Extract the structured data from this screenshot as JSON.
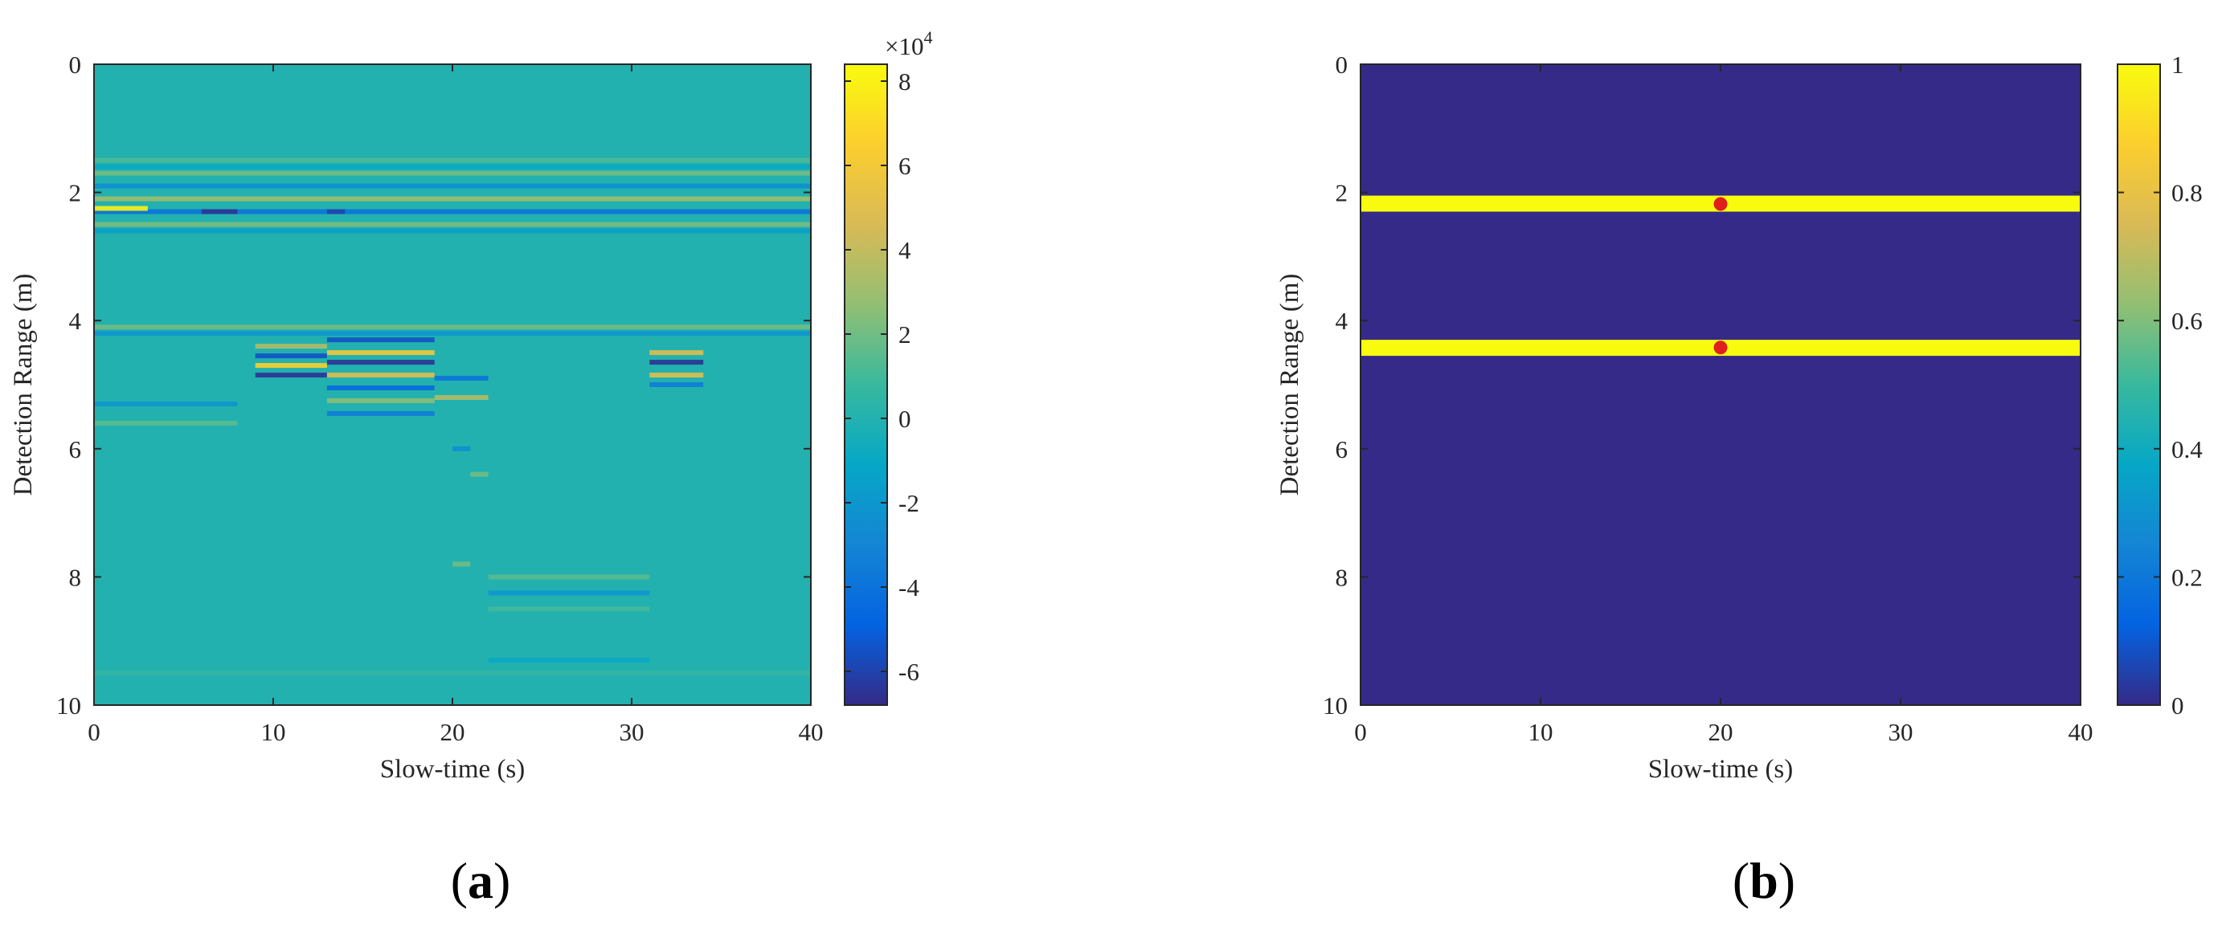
{
  "colors": {
    "parula": [
      "#352a87",
      "#0363e1",
      "#1485d4",
      "#06a7c6",
      "#38b99e",
      "#92bf73",
      "#d9ba56",
      "#fcce2e",
      "#f9fb0e"
    ],
    "detection_marker": "#e0201b",
    "axis": "#262626"
  },
  "chart_data": [
    {
      "type": "heatmap",
      "panel_label": "a",
      "xlabel": "Slow-time (s)",
      "ylabel": "Detection Range (m)",
      "xlim": [
        0,
        40
      ],
      "ylim": [
        0,
        10
      ],
      "y_reversed": true,
      "xticks": [
        "0",
        "10",
        "20",
        "30",
        "40"
      ],
      "yticks": [
        "0",
        "2",
        "4",
        "6",
        "8",
        "10"
      ],
      "colorbar": {
        "limits": [
          -6.8,
          8.4
        ],
        "ticks": [
          "-6",
          "-4",
          "-2",
          "0",
          "2",
          "4",
          "6",
          "8"
        ],
        "exponent": "4"
      },
      "background_value": 0,
      "features": [
        {
          "t": [
            0,
            40
          ],
          "range": 1.5,
          "value": 1.2
        },
        {
          "t": [
            0,
            40
          ],
          "range": 1.6,
          "value": -1.0
        },
        {
          "t": [
            0,
            40
          ],
          "range": 1.7,
          "value": 2.0
        },
        {
          "t": [
            0,
            40
          ],
          "range": 1.9,
          "value": -2.5
        },
        {
          "t": [
            0,
            40
          ],
          "range": 2.1,
          "value": 3.0
        },
        {
          "t": [
            0,
            40
          ],
          "range": 2.3,
          "value": -4.0
        },
        {
          "t": [
            0,
            3
          ],
          "range": 2.25,
          "value": 8.0
        },
        {
          "t": [
            6,
            8
          ],
          "range": 2.3,
          "value": -6.5
        },
        {
          "t": [
            13,
            14
          ],
          "range": 2.3,
          "value": -6.0
        },
        {
          "t": [
            0,
            40
          ],
          "range": 2.5,
          "value": 2.2
        },
        {
          "t": [
            0,
            40
          ],
          "range": 2.6,
          "value": -1.5
        },
        {
          "t": [
            0,
            40
          ],
          "range": 4.1,
          "value": 2.0
        },
        {
          "t": [
            0,
            40
          ],
          "range": 4.2,
          "value": -2.0
        },
        {
          "t": [
            9,
            13
          ],
          "range": 4.4,
          "value": 3.5
        },
        {
          "t": [
            9,
            13
          ],
          "range": 4.55,
          "value": -5.5
        },
        {
          "t": [
            9,
            13
          ],
          "range": 4.7,
          "value": 6.5
        },
        {
          "t": [
            9,
            13
          ],
          "range": 4.85,
          "value": -6.5
        },
        {
          "t": [
            13,
            19
          ],
          "range": 4.3,
          "value": -5.5
        },
        {
          "t": [
            13,
            19
          ],
          "range": 4.5,
          "value": 6.0
        },
        {
          "t": [
            13,
            19
          ],
          "range": 4.65,
          "value": -6.5
        },
        {
          "t": [
            13,
            19
          ],
          "range": 4.85,
          "value": 5.0
        },
        {
          "t": [
            13,
            19
          ],
          "range": 5.05,
          "value": -4.5
        },
        {
          "t": [
            13,
            19
          ],
          "range": 5.25,
          "value": 2.5
        },
        {
          "t": [
            13,
            19
          ],
          "range": 5.45,
          "value": -3.5
        },
        {
          "t": [
            19,
            22
          ],
          "range": 4.9,
          "value": -4.0
        },
        {
          "t": [
            19,
            22
          ],
          "range": 5.2,
          "value": 3.5
        },
        {
          "t": [
            31,
            34
          ],
          "range": 4.5,
          "value": 5.0
        },
        {
          "t": [
            31,
            34
          ],
          "range": 4.65,
          "value": -6.5
        },
        {
          "t": [
            31,
            34
          ],
          "range": 4.85,
          "value": 5.0
        },
        {
          "t": [
            31,
            34
          ],
          "range": 5.0,
          "value": -3.5
        },
        {
          "t": [
            0,
            8
          ],
          "range": 5.3,
          "value": -2.0
        },
        {
          "t": [
            0,
            8
          ],
          "range": 5.6,
          "value": 1.5
        },
        {
          "t": [
            20,
            21
          ],
          "range": 6.0,
          "value": -2.5
        },
        {
          "t": [
            21,
            22
          ],
          "range": 6.4,
          "value": 2.0
        },
        {
          "t": [
            20,
            21
          ],
          "range": 7.8,
          "value": 2.0
        },
        {
          "t": [
            22,
            31
          ],
          "range": 8.0,
          "value": 1.5
        },
        {
          "t": [
            22,
            31
          ],
          "range": 8.25,
          "value": -2.0
        },
        {
          "t": [
            22,
            31
          ],
          "range": 8.5,
          "value": 1.0
        },
        {
          "t": [
            22,
            31
          ],
          "range": 9.3,
          "value": -1.0
        },
        {
          "t": [
            0,
            40
          ],
          "range": 9.5,
          "value": 0.6
        }
      ]
    },
    {
      "type": "heatmap",
      "panel_label": "b",
      "xlabel": "Slow-time (s)",
      "ylabel": "Detection Range (m)",
      "xlim": [
        0,
        40
      ],
      "ylim": [
        0,
        10
      ],
      "y_reversed": true,
      "xticks": [
        "0",
        "10",
        "20",
        "30",
        "40"
      ],
      "yticks": [
        "0",
        "2",
        "4",
        "6",
        "8",
        "10"
      ],
      "colorbar": {
        "limits": [
          0,
          1
        ],
        "ticks": [
          "0",
          "0.2",
          "0.4",
          "0.6",
          "0.8",
          "1"
        ]
      },
      "background_value": 0,
      "bands": [
        {
          "range": [
            2.05,
            2.3
          ],
          "value": 1
        },
        {
          "range": [
            4.3,
            4.55
          ],
          "value": 1
        }
      ],
      "points": [
        {
          "t": 20,
          "range": 2.18
        },
        {
          "t": 20,
          "range": 4.42
        }
      ]
    }
  ]
}
